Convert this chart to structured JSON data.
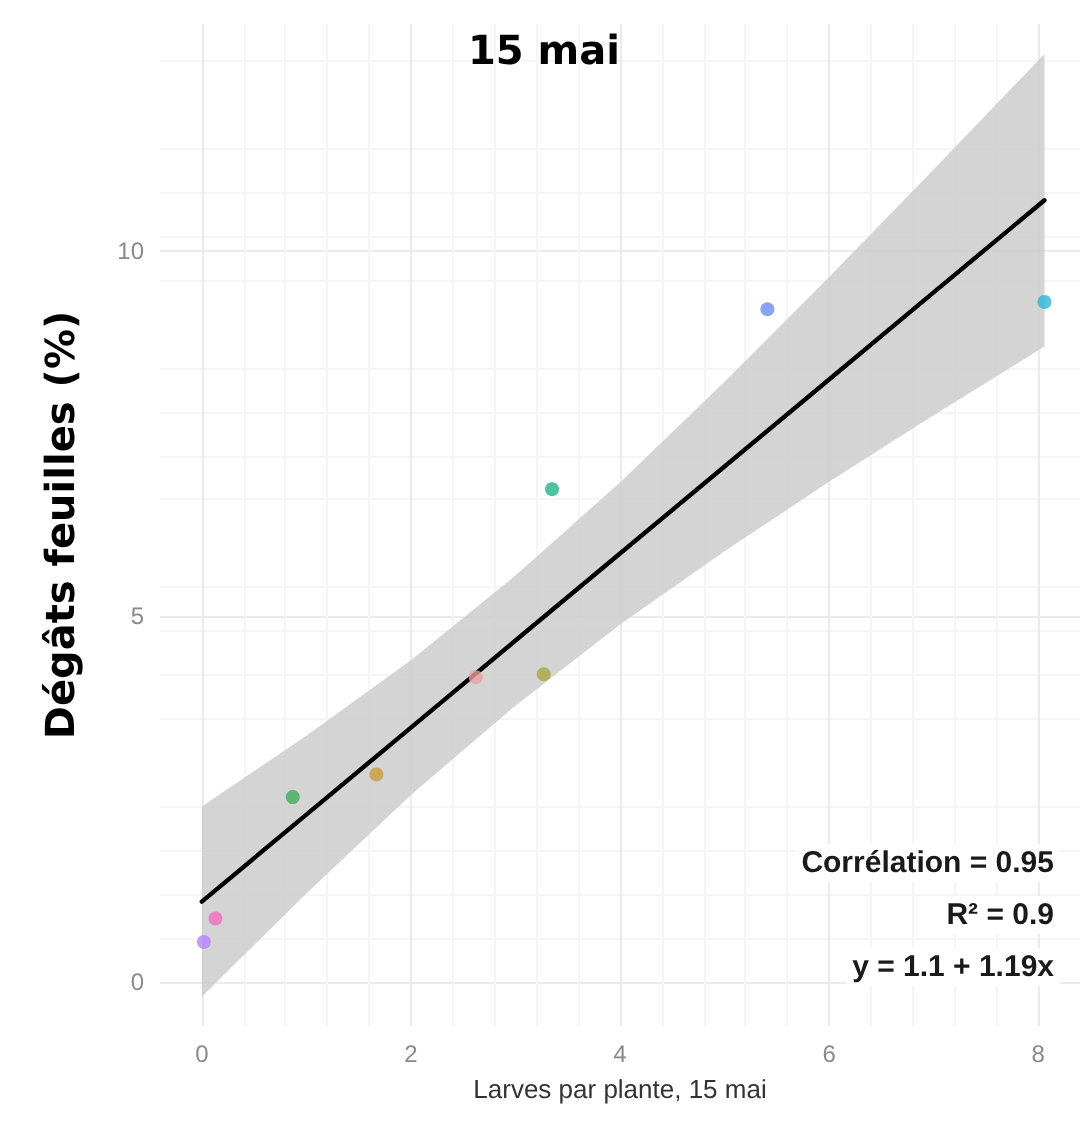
{
  "chart_data": {
    "type": "scatter",
    "title": "15 mai",
    "xlabel": "Larves par plante, 15 mai",
    "ylabel": "Dégâts feuilles (%)",
    "xlim": [
      -0.4,
      8.4
    ],
    "xticks": [
      0,
      2,
      4,
      6,
      8
    ],
    "ylim": [
      -0.6,
      13.1
    ],
    "yticks": [
      0,
      5,
      10
    ],
    "grid": true,
    "series": [
      {
        "marker": "circle",
        "x": [
          0.02,
          0.13,
          0.87,
          1.67,
          2.62,
          3.27,
          3.35,
          5.41,
          8.06
        ],
        "values": [
          0.55,
          0.87,
          2.53,
          2.84,
          4.17,
          4.21,
          6.74,
          9.2,
          9.3
        ],
        "colors": [
          "#b385ff",
          "#f06cc0",
          "#3fae5a",
          "#c99a3a",
          "#e8a0a0",
          "#a6a83a",
          "#1fb38a",
          "#6b8ee8",
          "#29b8d6"
        ]
      },
      {
        "type": "line",
        "color": "#000000",
        "line_style": "solid",
        "x": [
          0,
          1,
          2,
          3,
          4,
          5,
          6,
          7,
          8.06
        ],
        "values": [
          1.1,
          2.29,
          3.48,
          4.67,
          5.86,
          7.05,
          8.24,
          9.43,
          10.69
        ],
        "lower": [
          -0.2,
          1.21,
          2.56,
          3.78,
          4.89,
          5.89,
          6.84,
          7.75,
          8.69
        ],
        "upper": [
          2.4,
          3.37,
          4.4,
          5.56,
          6.83,
          8.21,
          9.64,
          11.11,
          12.69
        ]
      }
    ],
    "annotations": [
      "Corrélation = 0.95",
      "R² = 0.9",
      "y = 1.1 + 1.19x"
    ]
  }
}
